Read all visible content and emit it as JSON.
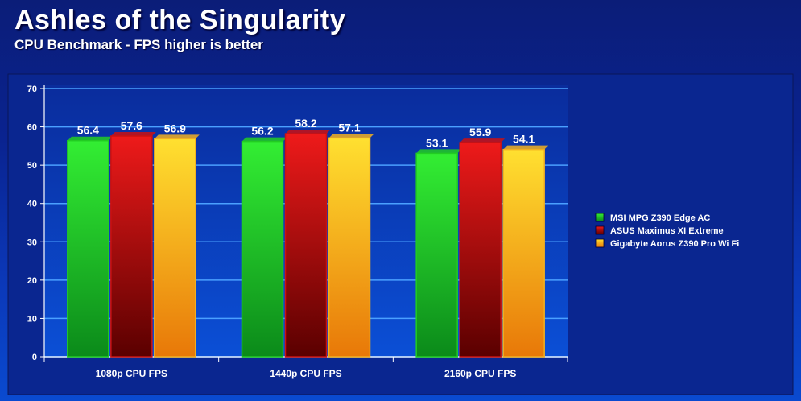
{
  "title": "Ashles of the Singularity",
  "subtitle": "CPU Benchmark - FPS higher is better",
  "chart_data": {
    "type": "bar",
    "title": "Ashles of the Singularity",
    "subtitle": "CPU Benchmark - FPS higher is better",
    "categories": [
      "1080p CPU FPS",
      "1440p CPU FPS",
      "2160p CPU FPS"
    ],
    "series": [
      {
        "name": "MSI MPG Z390 Edge AC",
        "values": [
          56.4,
          56.2,
          53.1
        ],
        "color": "#22cc22"
      },
      {
        "name": "ASUS Maximus XI Extreme",
        "values": [
          57.6,
          58.2,
          55.9
        ],
        "color": "#cc1111"
      },
      {
        "name": "Gigabyte Aorus Z390 Pro Wi Fi",
        "values": [
          56.9,
          57.1,
          54.1
        ],
        "color": "#f2b020"
      }
    ],
    "yticks": [
      0,
      10,
      20,
      30,
      40,
      50,
      60,
      70
    ],
    "ylim": [
      0,
      70
    ],
    "xlabel": "",
    "ylabel": "",
    "grid": true,
    "legend_position": "right"
  },
  "colors": {
    "background_top": "#0b1d78",
    "background_bottom": "#0a4ad0",
    "plot_background": "#0d40c0",
    "gridline": "#4aa0ff"
  }
}
